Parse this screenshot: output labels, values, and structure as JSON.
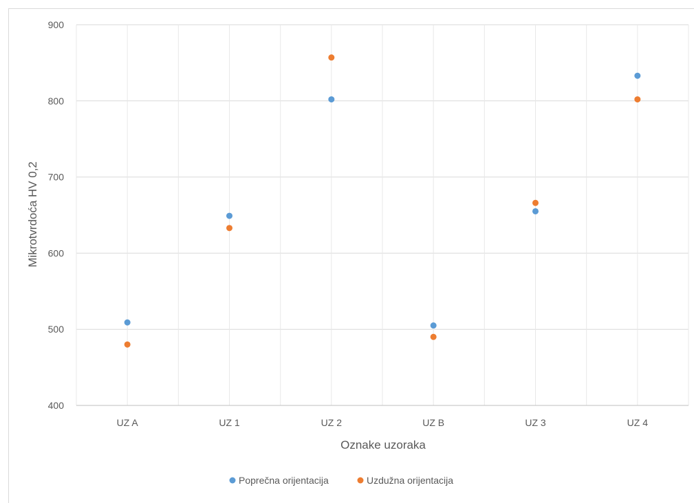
{
  "chart_data": {
    "type": "scatter",
    "title": "",
    "xlabel": "Oznake uzoraka",
    "ylabel": "Mikrotvrdoća HV 0,2",
    "categories": [
      "UZ A",
      "UZ 1",
      "UZ 2",
      "UZ B",
      "UZ 3",
      "UZ 4"
    ],
    "ylim": [
      400,
      900
    ],
    "yticks": [
      400,
      500,
      600,
      700,
      800,
      900
    ],
    "grid": true,
    "legend_position": "bottom",
    "series": [
      {
        "name": "Poprečna orijentacija",
        "color": "#5b9bd5",
        "values": [
          509,
          649,
          802,
          505,
          655,
          833
        ]
      },
      {
        "name": "Uzdužna orijentacija",
        "color": "#ed7d31",
        "values": [
          480,
          633,
          857,
          490,
          666,
          802
        ]
      }
    ]
  }
}
